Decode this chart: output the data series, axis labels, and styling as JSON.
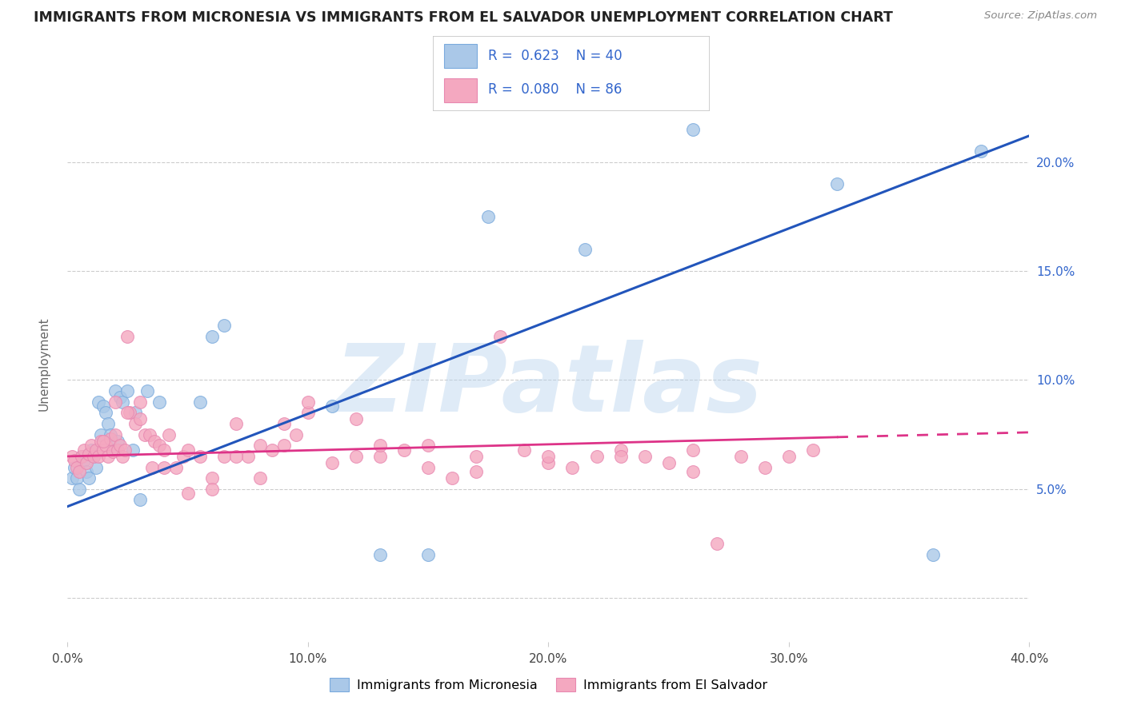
{
  "title": "IMMIGRANTS FROM MICRONESIA VS IMMIGRANTS FROM EL SALVADOR UNEMPLOYMENT CORRELATION CHART",
  "source": "Source: ZipAtlas.com",
  "ylabel": "Unemployment",
  "xlim": [
    0.0,
    0.4
  ],
  "ylim": [
    -0.02,
    0.235
  ],
  "yticks": [
    0.0,
    0.05,
    0.1,
    0.15,
    0.2
  ],
  "ytick_labels": [
    "",
    "5.0%",
    "10.0%",
    "15.0%",
    "20.0%"
  ],
  "xticks": [
    0.0,
    0.1,
    0.2,
    0.3,
    0.4
  ],
  "xtick_labels": [
    "0.0%",
    "10.0%",
    "20.0%",
    "30.0%",
    "40.0%"
  ],
  "blue_scatter_color": "#aac8e8",
  "pink_scatter_color": "#f4a8c0",
  "trend_blue_color": "#2255bb",
  "trend_pink_color": "#dd3388",
  "label_color": "#3366cc",
  "grid_color": "#cccccc",
  "background_color": "#ffffff",
  "watermark": "ZIPatlas",
  "watermark_color": "#b8d4ee",
  "legend_R1": "0.623",
  "legend_N1": "40",
  "legend_R2": "0.080",
  "legend_N2": "86",
  "series1_label": "Immigrants from Micronesia",
  "series2_label": "Immigrants from El Salvador",
  "blue_trend_x0": 0.0,
  "blue_trend_y0": 0.042,
  "blue_trend_x1": 0.4,
  "blue_trend_y1": 0.212,
  "pink_trend_x0": 0.0,
  "pink_trend_y0": 0.065,
  "pink_trend_x1": 0.4,
  "pink_trend_y1": 0.076,
  "blue_x": [
    0.002,
    0.003,
    0.004,
    0.005,
    0.006,
    0.007,
    0.008,
    0.009,
    0.01,
    0.011,
    0.012,
    0.013,
    0.014,
    0.015,
    0.016,
    0.017,
    0.018,
    0.019,
    0.02,
    0.021,
    0.022,
    0.023,
    0.025,
    0.027,
    0.03,
    0.033,
    0.038,
    0.055,
    0.06,
    0.065,
    0.11,
    0.15,
    0.175,
    0.215,
    0.26,
    0.32,
    0.36,
    0.38,
    0.13,
    0.028
  ],
  "blue_y": [
    0.055,
    0.06,
    0.055,
    0.05,
    0.065,
    0.063,
    0.058,
    0.055,
    0.068,
    0.065,
    0.06,
    0.09,
    0.075,
    0.088,
    0.085,
    0.08,
    0.075,
    0.068,
    0.095,
    0.072,
    0.092,
    0.09,
    0.095,
    0.068,
    0.045,
    0.095,
    0.09,
    0.09,
    0.12,
    0.125,
    0.088,
    0.02,
    0.175,
    0.16,
    0.215,
    0.19,
    0.02,
    0.205,
    0.02,
    0.085
  ],
  "pink_x": [
    0.002,
    0.003,
    0.004,
    0.005,
    0.006,
    0.007,
    0.008,
    0.009,
    0.01,
    0.011,
    0.012,
    0.013,
    0.014,
    0.015,
    0.016,
    0.017,
    0.018,
    0.019,
    0.02,
    0.021,
    0.022,
    0.023,
    0.024,
    0.025,
    0.026,
    0.028,
    0.03,
    0.032,
    0.034,
    0.036,
    0.038,
    0.04,
    0.042,
    0.045,
    0.048,
    0.05,
    0.055,
    0.06,
    0.065,
    0.07,
    0.075,
    0.08,
    0.085,
    0.09,
    0.095,
    0.1,
    0.11,
    0.12,
    0.13,
    0.14,
    0.15,
    0.16,
    0.17,
    0.18,
    0.19,
    0.2,
    0.21,
    0.22,
    0.23,
    0.24,
    0.25,
    0.26,
    0.27,
    0.28,
    0.29,
    0.3,
    0.015,
    0.02,
    0.025,
    0.03,
    0.035,
    0.04,
    0.05,
    0.06,
    0.07,
    0.08,
    0.09,
    0.1,
    0.12,
    0.13,
    0.15,
    0.17,
    0.2,
    0.23,
    0.26,
    0.31
  ],
  "pink_y": [
    0.065,
    0.063,
    0.06,
    0.058,
    0.065,
    0.068,
    0.062,
    0.066,
    0.07,
    0.065,
    0.068,
    0.065,
    0.072,
    0.068,
    0.07,
    0.065,
    0.073,
    0.067,
    0.075,
    0.068,
    0.07,
    0.065,
    0.068,
    0.12,
    0.085,
    0.08,
    0.082,
    0.075,
    0.075,
    0.072,
    0.07,
    0.068,
    0.075,
    0.06,
    0.065,
    0.068,
    0.065,
    0.055,
    0.065,
    0.08,
    0.065,
    0.07,
    0.068,
    0.08,
    0.075,
    0.085,
    0.062,
    0.082,
    0.065,
    0.068,
    0.06,
    0.055,
    0.058,
    0.12,
    0.068,
    0.062,
    0.06,
    0.065,
    0.068,
    0.065,
    0.062,
    0.058,
    0.025,
    0.065,
    0.06,
    0.065,
    0.072,
    0.09,
    0.085,
    0.09,
    0.06,
    0.06,
    0.048,
    0.05,
    0.065,
    0.055,
    0.07,
    0.09,
    0.065,
    0.07,
    0.07,
    0.065,
    0.065,
    0.065,
    0.068,
    0.068
  ]
}
